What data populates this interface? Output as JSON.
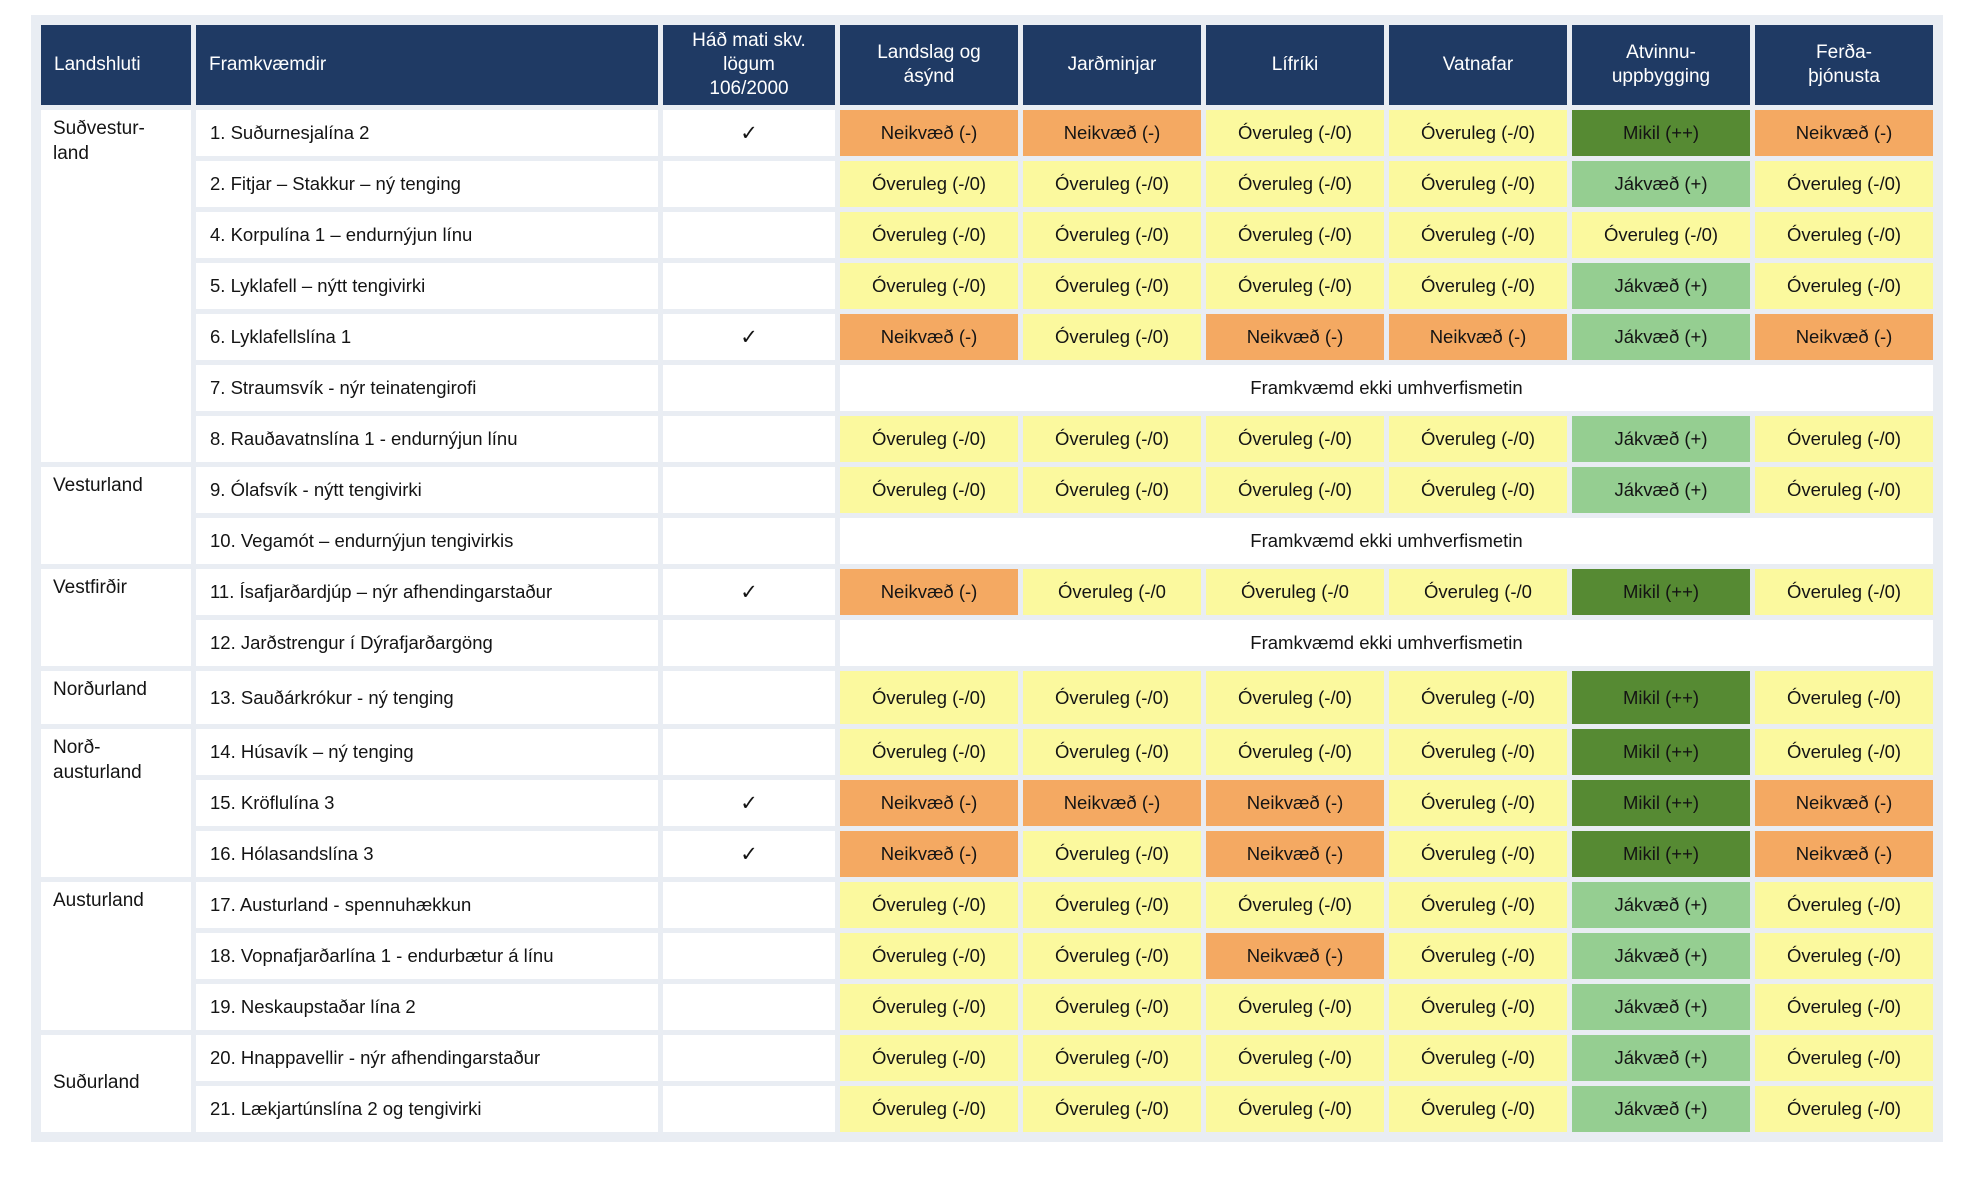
{
  "colors": {
    "header_bg": "#1F3A64",
    "negative": "#F4A962",
    "insignificant": "#FBF99E",
    "positive": "#95CE91",
    "major_positive": "#568A33",
    "grid_gap": "#E9EDF3"
  },
  "check_glyph": "✓",
  "table": {
    "columns": [
      {
        "id": "landshluti",
        "label": "Landshluti",
        "align": "left"
      },
      {
        "id": "framkvaemdir",
        "label": "Framkvæmdir",
        "align": "left"
      },
      {
        "id": "had-mati",
        "label": "Háð mati skv.\nlögum\n106/2000",
        "align": "center"
      },
      {
        "id": "landslag",
        "label": "Landslag og\násýnd",
        "align": "center"
      },
      {
        "id": "jardminjar",
        "label": "Jarðminjar",
        "align": "center"
      },
      {
        "id": "lifriki",
        "label": "Lífríki",
        "align": "center"
      },
      {
        "id": "vatnafar",
        "label": "Vatnafar",
        "align": "center"
      },
      {
        "id": "atvinnuuppbygging",
        "label": "Atvinnu-\nuppbygging",
        "align": "center"
      },
      {
        "id": "ferdathjonusta",
        "label": "Ferða-\nþjónusta",
        "align": "center"
      }
    ],
    "groups": [
      {
        "region": "Suðvestur-\nland",
        "rows": [
          {
            "project": "1. Suðurnesjalína 2",
            "checked": true,
            "cells": [
              {
                "t": "Neikvæð (-)",
                "c": "neg"
              },
              {
                "t": "Neikvæð (-)",
                "c": "neg"
              },
              {
                "t": "Óveruleg (-/0)",
                "c": "min"
              },
              {
                "t": "Óveruleg (-/0)",
                "c": "min"
              },
              {
                "t": "Mikil (++)",
                "c": "high"
              },
              {
                "t": "Neikvæð (-)",
                "c": "neg"
              }
            ]
          },
          {
            "project": "2. Fitjar – Stakkur – ný tenging",
            "checked": false,
            "cells": [
              {
                "t": "Óveruleg (-/0)",
                "c": "min"
              },
              {
                "t": "Óveruleg (-/0)",
                "c": "min"
              },
              {
                "t": "Óveruleg (-/0)",
                "c": "min"
              },
              {
                "t": "Óveruleg (-/0)",
                "c": "min"
              },
              {
                "t": "Jákvæð (+)",
                "c": "pos"
              },
              {
                "t": "Óveruleg (-/0)",
                "c": "min"
              }
            ]
          },
          {
            "project": "4. Korpulína 1 – endurnýjun línu",
            "checked": false,
            "cells": [
              {
                "t": "Óveruleg (-/0)",
                "c": "min"
              },
              {
                "t": "Óveruleg (-/0)",
                "c": "min"
              },
              {
                "t": "Óveruleg (-/0)",
                "c": "min"
              },
              {
                "t": "Óveruleg (-/0)",
                "c": "min"
              },
              {
                "t": "Óveruleg (-/0)",
                "c": "min"
              },
              {
                "t": "Óveruleg (-/0)",
                "c": "min"
              }
            ]
          },
          {
            "project": "5. Lyklafell – nýtt tengivirki",
            "checked": false,
            "cells": [
              {
                "t": "Óveruleg (-/0)",
                "c": "min"
              },
              {
                "t": "Óveruleg (-/0)",
                "c": "min"
              },
              {
                "t": "Óveruleg (-/0)",
                "c": "min"
              },
              {
                "t": "Óveruleg (-/0)",
                "c": "min"
              },
              {
                "t": "Jákvæð (+)",
                "c": "pos"
              },
              {
                "t": "Óveruleg (-/0)",
                "c": "min"
              }
            ]
          },
          {
            "project": "6. Lyklafellslína 1",
            "checked": true,
            "cells": [
              {
                "t": "Neikvæð (-)",
                "c": "neg"
              },
              {
                "t": "Óveruleg (-/0)",
                "c": "min"
              },
              {
                "t": "Neikvæð (-)",
                "c": "neg"
              },
              {
                "t": "Neikvæð (-)",
                "c": "neg"
              },
              {
                "t": "Jákvæð (+)",
                "c": "pos"
              },
              {
                "t": "Neikvæð (-)",
                "c": "neg"
              }
            ]
          },
          {
            "project": "7. Straumsvík - nýr teinatengirofi",
            "checked": false,
            "merged": "Framkvæmd ekki umhverfismetin"
          },
          {
            "project": "8. Rauðavatnslína 1 - endurnýjun línu",
            "checked": false,
            "cells": [
              {
                "t": "Óveruleg (-/0)",
                "c": "min"
              },
              {
                "t": "Óveruleg (-/0)",
                "c": "min"
              },
              {
                "t": "Óveruleg (-/0)",
                "c": "min"
              },
              {
                "t": "Óveruleg (-/0)",
                "c": "min"
              },
              {
                "t": "Jákvæð (+)",
                "c": "pos"
              },
              {
                "t": "Óveruleg (-/0)",
                "c": "min"
              }
            ]
          }
        ]
      },
      {
        "region": "Vesturland",
        "rows": [
          {
            "project": "9. Ólafsvík - nýtt tengivirki",
            "checked": false,
            "cells": [
              {
                "t": "Óveruleg (-/0)",
                "c": "min"
              },
              {
                "t": "Óveruleg (-/0)",
                "c": "min"
              },
              {
                "t": "Óveruleg (-/0)",
                "c": "min"
              },
              {
                "t": "Óveruleg (-/0)",
                "c": "min"
              },
              {
                "t": "Jákvæð (+)",
                "c": "pos"
              },
              {
                "t": "Óveruleg (-/0)",
                "c": "min"
              }
            ]
          },
          {
            "project": "10. Vegamót – endurnýjun tengivirkis",
            "checked": false,
            "merged": "Framkvæmd ekki umhverfismetin"
          }
        ]
      },
      {
        "region": "Vestfirðir",
        "rows": [
          {
            "project": "11. Ísafjarðardjúp – nýr afhendingarstaður",
            "checked": true,
            "cells": [
              {
                "t": "Neikvæð (-)",
                "c": "neg"
              },
              {
                "t": "Óveruleg (-/0",
                "c": "min"
              },
              {
                "t": "Óveruleg (-/0",
                "c": "min"
              },
              {
                "t": "Óveruleg (-/0",
                "c": "min"
              },
              {
                "t": "Mikil (++)",
                "c": "high"
              },
              {
                "t": "Óveruleg (-/0)",
                "c": "min"
              }
            ]
          },
          {
            "project": "12. Jarðstrengur í Dýrafjarðargöng",
            "checked": false,
            "merged": "Framkvæmd ekki umhverfismetin"
          }
        ]
      },
      {
        "region": "Norðurland",
        "rows": [
          {
            "project": "13. Sauðárkrókur - ný tenging",
            "checked": false,
            "cells": [
              {
                "t": "Óveruleg (-/0)",
                "c": "min"
              },
              {
                "t": "Óveruleg (-/0)",
                "c": "min"
              },
              {
                "t": "Óveruleg (-/0)",
                "c": "min"
              },
              {
                "t": "Óveruleg (-/0)",
                "c": "min"
              },
              {
                "t": "Mikil (++)",
                "c": "high"
              },
              {
                "t": "Óveruleg (-/0)",
                "c": "min"
              }
            ]
          }
        ]
      },
      {
        "region": "Norð-\nausturland",
        "rows": [
          {
            "project": "14. Húsavík – ný tenging",
            "checked": false,
            "cells": [
              {
                "t": "Óveruleg (-/0)",
                "c": "min"
              },
              {
                "t": "Óveruleg (-/0)",
                "c": "min"
              },
              {
                "t": "Óveruleg (-/0)",
                "c": "min"
              },
              {
                "t": "Óveruleg (-/0)",
                "c": "min"
              },
              {
                "t": "Mikil (++)",
                "c": "high"
              },
              {
                "t": "Óveruleg (-/0)",
                "c": "min"
              }
            ]
          },
          {
            "project": "15. Kröflulína 3",
            "checked": true,
            "cells": [
              {
                "t": "Neikvæð (-)",
                "c": "neg"
              },
              {
                "t": "Neikvæð (-)",
                "c": "neg"
              },
              {
                "t": "Neikvæð (-)",
                "c": "neg"
              },
              {
                "t": "Óveruleg (-/0)",
                "c": "min"
              },
              {
                "t": "Mikil (++)",
                "c": "high"
              },
              {
                "t": "Neikvæð (-)",
                "c": "neg"
              }
            ]
          },
          {
            "project": "16. Hólasandslína 3",
            "checked": true,
            "cells": [
              {
                "t": "Neikvæð (-)",
                "c": "neg"
              },
              {
                "t": "Óveruleg (-/0)",
                "c": "min"
              },
              {
                "t": "Neikvæð (-)",
                "c": "neg"
              },
              {
                "t": "Óveruleg (-/0)",
                "c": "min"
              },
              {
                "t": "Mikil (++)",
                "c": "high"
              },
              {
                "t": "Neikvæð (-)",
                "c": "neg"
              }
            ]
          }
        ]
      },
      {
        "region": "Austurland",
        "rows": [
          {
            "project": "17. Austurland - spennuhækkun",
            "checked": false,
            "cells": [
              {
                "t": "Óveruleg (-/0)",
                "c": "min"
              },
              {
                "t": "Óveruleg (-/0)",
                "c": "min"
              },
              {
                "t": "Óveruleg (-/0)",
                "c": "min"
              },
              {
                "t": "Óveruleg (-/0)",
                "c": "min"
              },
              {
                "t": "Jákvæð (+)",
                "c": "pos"
              },
              {
                "t": "Óveruleg (-/0)",
                "c": "min"
              }
            ]
          },
          {
            "project": "18.  Vopnafjarðarlína 1 - endurbætur á línu",
            "checked": false,
            "cells": [
              {
                "t": "Óveruleg (-/0)",
                "c": "min"
              },
              {
                "t": "Óveruleg (-/0)",
                "c": "min"
              },
              {
                "t": "Neikvæð (-)",
                "c": "neg"
              },
              {
                "t": "Óveruleg (-/0)",
                "c": "min"
              },
              {
                "t": "Jákvæð (+)",
                "c": "pos"
              },
              {
                "t": "Óveruleg (-/0)",
                "c": "min"
              }
            ]
          },
          {
            "project": "19. Neskaupstaðar lína 2",
            "checked": false,
            "cells": [
              {
                "t": "Óveruleg (-/0)",
                "c": "min"
              },
              {
                "t": "Óveruleg (-/0)",
                "c": "min"
              },
              {
                "t": "Óveruleg (-/0)",
                "c": "min"
              },
              {
                "t": "Óveruleg (-/0)",
                "c": "min"
              },
              {
                "t": "Jákvæð (+)",
                "c": "pos"
              },
              {
                "t": "Óveruleg (-/0)",
                "c": "min"
              }
            ]
          }
        ]
      },
      {
        "region": "Suðurland",
        "region_valign": "middle",
        "rows": [
          {
            "project": "20. Hnappavellir - nýr afhendingarstaður",
            "checked": false,
            "cells": [
              {
                "t": "Óveruleg (-/0)",
                "c": "min"
              },
              {
                "t": "Óveruleg (-/0)",
                "c": "min"
              },
              {
                "t": "Óveruleg (-/0)",
                "c": "min"
              },
              {
                "t": "Óveruleg (-/0)",
                "c": "min"
              },
              {
                "t": "Jákvæð (+)",
                "c": "pos"
              },
              {
                "t": "Óveruleg (-/0)",
                "c": "min"
              }
            ]
          },
          {
            "project": "21.  Lækjartúnslína 2 og tengivirki",
            "checked": false,
            "cells": [
              {
                "t": "Óveruleg (-/0)",
                "c": "min"
              },
              {
                "t": "Óveruleg (-/0)",
                "c": "min"
              },
              {
                "t": "Óveruleg (-/0)",
                "c": "min"
              },
              {
                "t": "Óveruleg (-/0)",
                "c": "min"
              },
              {
                "t": "Jákvæð (+)",
                "c": "pos"
              },
              {
                "t": "Óveruleg (-/0)",
                "c": "min"
              }
            ]
          }
        ]
      }
    ]
  }
}
